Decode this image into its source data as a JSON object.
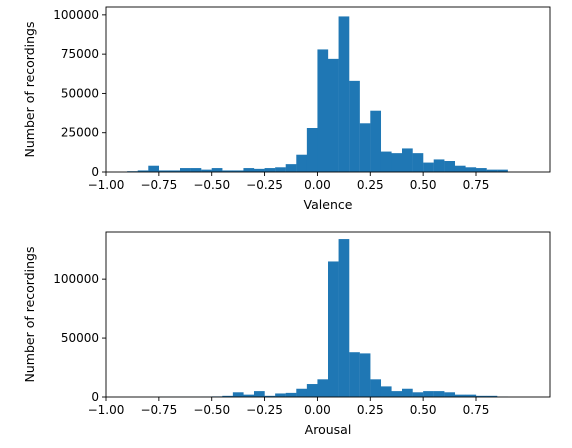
{
  "chart_data": [
    {
      "type": "bar",
      "xlabel": "Valence",
      "ylabel": "Number of recordings",
      "xlim": [
        -1.0,
        1.1
      ],
      "ylim": [
        0,
        105000
      ],
      "xticks": [
        -1.0,
        -0.75,
        -0.5,
        -0.25,
        0.0,
        0.25,
        0.5,
        0.75
      ],
      "xtick_labels": [
        "−1.00",
        "−0.75",
        "−0.50",
        "−0.25",
        "0.00",
        "0.25",
        "0.50",
        "0.75"
      ],
      "yticks": [
        0,
        25000,
        50000,
        75000,
        100000
      ],
      "ytick_labels": [
        "0",
        "25000",
        "50000",
        "75000",
        "100000"
      ],
      "bin_width": 0.05,
      "bin_starts": [
        -0.9,
        -0.85,
        -0.8,
        -0.75,
        -0.7,
        -0.65,
        -0.6,
        -0.55,
        -0.5,
        -0.45,
        -0.4,
        -0.35,
        -0.3,
        -0.25,
        -0.2,
        -0.15,
        -0.1,
        -0.05,
        0.0,
        0.05,
        0.1,
        0.15,
        0.2,
        0.25,
        0.3,
        0.35,
        0.4,
        0.45,
        0.5,
        0.55,
        0.6,
        0.65,
        0.7,
        0.75,
        0.8,
        0.85
      ],
      "values": [
        500,
        1000,
        4000,
        1000,
        1000,
        2500,
        2500,
        1500,
        2500,
        1000,
        1000,
        2500,
        2000,
        2500,
        3000,
        5000,
        11000,
        28000,
        78000,
        72000,
        99000,
        58000,
        31000,
        39000,
        13000,
        12000,
        15000,
        12000,
        6000,
        8000,
        7000,
        4000,
        3000,
        2500,
        1500,
        1500
      ],
      "color": "#1f77b4",
      "grid": false
    },
    {
      "type": "bar",
      "xlabel": "Arousal",
      "ylabel": "Number of recordings",
      "xlim": [
        -1.0,
        1.1
      ],
      "ylim": [
        0,
        140000
      ],
      "xticks": [
        -1.0,
        -0.75,
        -0.5,
        -0.25,
        0.0,
        0.25,
        0.5,
        0.75
      ],
      "xtick_labels": [
        "−1.00",
        "−0.75",
        "−0.50",
        "−0.25",
        "0.00",
        "0.25",
        "0.50",
        "0.75"
      ],
      "yticks": [
        0,
        50000,
        100000
      ],
      "ytick_labels": [
        "0",
        "50000",
        "100000"
      ],
      "bin_width": 0.05,
      "bin_starts": [
        -0.75,
        -0.7,
        -0.65,
        -0.6,
        -0.55,
        -0.5,
        -0.45,
        -0.4,
        -0.35,
        -0.3,
        -0.25,
        -0.2,
        -0.15,
        -0.1,
        -0.05,
        0.0,
        0.05,
        0.1,
        0.15,
        0.2,
        0.25,
        0.3,
        0.35,
        0.4,
        0.45,
        0.5,
        0.55,
        0.6,
        0.65,
        0.7,
        0.75,
        0.8,
        0.85
      ],
      "values": [
        200,
        200,
        200,
        200,
        300,
        500,
        1000,
        4000,
        2000,
        5000,
        1000,
        3000,
        3500,
        7000,
        11000,
        15000,
        115000,
        134000,
        38000,
        37000,
        15000,
        9000,
        5000,
        7000,
        4000,
        5000,
        5000,
        4000,
        2000,
        2000,
        1000,
        1000,
        300
      ],
      "color": "#1f77b4",
      "grid": false
    }
  ]
}
